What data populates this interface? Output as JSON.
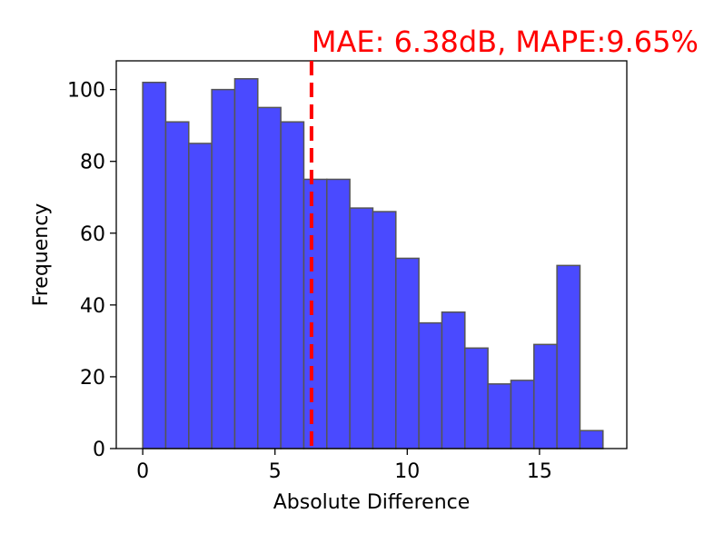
{
  "chart_data": {
    "type": "bar",
    "subtype": "histogram",
    "title": "",
    "xlabel": "Absolute Difference",
    "ylabel": "Frequency",
    "bin_start": 0.0,
    "bin_width": 0.87,
    "values": [
      102,
      91,
      85,
      100,
      103,
      95,
      91,
      75,
      75,
      67,
      66,
      53,
      35,
      38,
      28,
      18,
      19,
      29,
      51,
      5
    ],
    "xlim": [
      -1.0,
      18.3
    ],
    "ylim": [
      0,
      108
    ],
    "xticks": [
      0,
      5,
      10,
      15
    ],
    "yticks": [
      0,
      20,
      40,
      60,
      80,
      100
    ],
    "bar_color": "#4a4aff",
    "bar_edge_color": "#555555",
    "grid": false,
    "reference_line": {
      "x": 6.38,
      "color": "#ff0000",
      "style": "dashed"
    },
    "annotation": {
      "text": "MAE: 6.38dB, MAPE:9.65%",
      "color": "#ff0000"
    }
  }
}
